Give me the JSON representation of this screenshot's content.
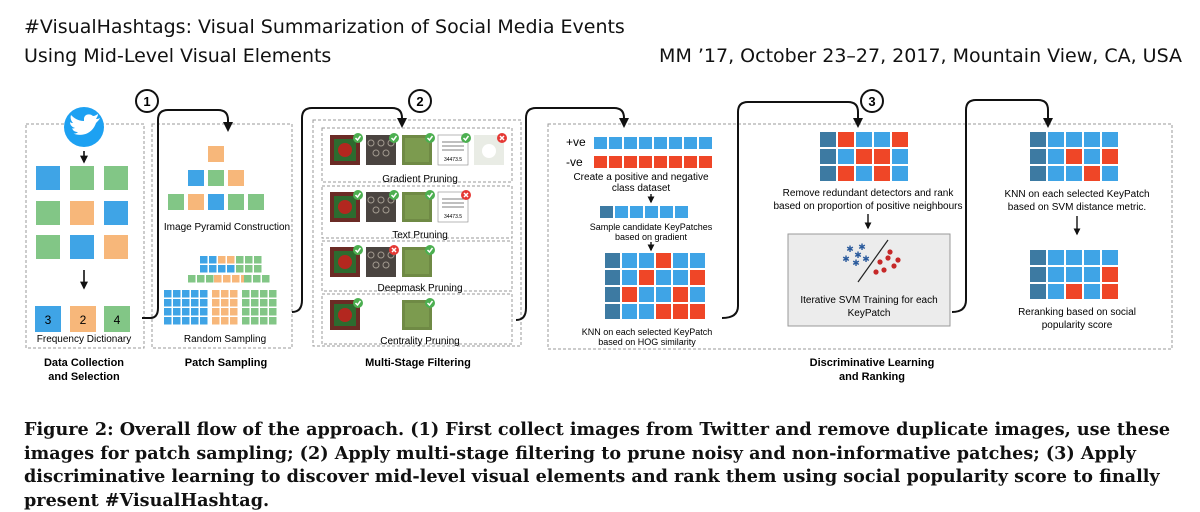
{
  "header": {
    "title_line1": "#VisualHashtags: Visual Summarization of Social Media Events",
    "title_line2": "Using Mid-Level Visual Elements",
    "venue": "MM ’17, October 23–27, 2017, Mountain View, CA, USA"
  },
  "figure": {
    "steps": [
      "1",
      "2",
      "3"
    ],
    "data_collection": {
      "freq_values": [
        "3",
        "2",
        "4"
      ],
      "freq_label": "Frequency Dictionary",
      "stage_label_line1": "Data Collection",
      "stage_label_line2": "and Selection",
      "bird_icon": "twitter-bird-icon"
    },
    "patch_sampling": {
      "pyramid_label": "Image Pyramid Construction",
      "random_label": "Random Sampling",
      "stage_label": "Patch Sampling"
    },
    "filtering": {
      "gradient_label": "Gradient Pruning",
      "text_label": "Text Pruning",
      "deepmask_label": "Deepmask Pruning",
      "centrality_label": "Centrality Pruning",
      "stage_label": "Multi-Stage Filtering",
      "doc_text": "34473.5"
    },
    "learning": {
      "pos_label": "+ve",
      "neg_label": "-ve",
      "dataset_line1": "Create a positive and negative",
      "dataset_line2": "class dataset",
      "sample_line1": "Sample candidate KeyPatches",
      "sample_line2": "based on gradient",
      "knn_hog_line1": "KNN on each selected KeyPatch",
      "knn_hog_line2": "based on HOG similarity",
      "remove_line1": "Remove redundant detectors and rank",
      "remove_line2": "based on proportion of positive neighbours",
      "svm_line1": "Iterative SVM Training for each",
      "svm_line2": "KeyPatch",
      "knn_svm_line1": "KNN on each selected KeyPatch",
      "knn_svm_line2": "based on SVM distance metric.",
      "rerank_line1": "Reranking based on social",
      "rerank_line2": "popularity score",
      "stage_label_line1": "Discriminative Learning",
      "stage_label_line2": "and Ranking"
    },
    "colors": {
      "blue": "#3fa4e6",
      "green": "#82c686",
      "orange": "#f7b77a",
      "red": "#ef4627",
      "teal": "#3d7aa2",
      "twitter": "#1da1f2"
    }
  },
  "caption": "Figure 2: Overall flow of the approach. (1) First collect images from Twitter and remove duplicate images, use these images for patch sampling; (2) Apply multi-stage filtering to prune noisy and non-informative patches; (3) Apply discriminative learning to discover mid-level visual elements and rank them using social popularity score to finally present #VisualHashtag."
}
